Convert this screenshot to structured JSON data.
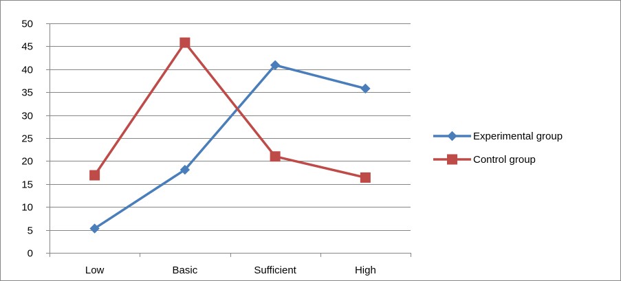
{
  "chart_data": {
    "type": "line",
    "categories": [
      "Low",
      "Basic",
      "Sufficient",
      "High"
    ],
    "series": [
      {
        "name": "Experimental group",
        "values": [
          5.3,
          18.1,
          40.9,
          35.8
        ],
        "color": "#4A7EBB",
        "marker": "diamond"
      },
      {
        "name": "Control group",
        "values": [
          16.9,
          45.8,
          21.0,
          16.4
        ],
        "color": "#BE4B48",
        "marker": "square"
      }
    ],
    "title": "",
    "xlabel": "",
    "ylabel": "",
    "ylim": [
      0,
      50
    ],
    "yticks": [
      0,
      5,
      10,
      15,
      20,
      25,
      30,
      35,
      40,
      45,
      50
    ],
    "grid": true,
    "legend_position": "right"
  }
}
